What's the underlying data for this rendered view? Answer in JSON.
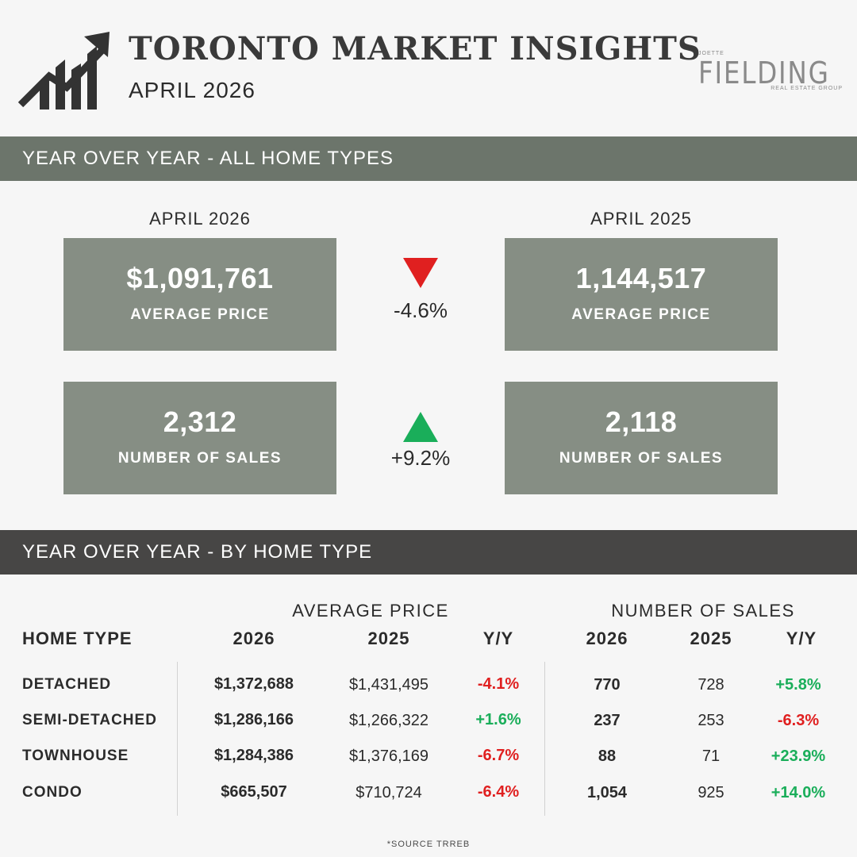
{
  "header": {
    "title": "TORONTO MARKET INSIGHTS",
    "subtitle": "APRIL 2026",
    "brand_small": "JOETTE",
    "brand_name": "FIELDING",
    "brand_tag": "REAL ESTATE GROUP",
    "icon": "growth-chart-icon"
  },
  "section_all": {
    "title": "YEAR OVER YEAR - ALL HOME TYPES",
    "current_label": "APRIL 2026",
    "previous_label": "APRIL 2025",
    "price": {
      "current_value": "$1,091,761",
      "current_label": "AVERAGE PRICE",
      "change": "-4.6%",
      "direction": "down",
      "previous_value": "1,144,517",
      "previous_label": "AVERAGE PRICE"
    },
    "sales": {
      "current_value": "2,312",
      "current_label": "NUMBER OF SALES",
      "change": "+9.2%",
      "direction": "up",
      "previous_value": "2,118",
      "previous_label": "NUMBER OF SALES"
    }
  },
  "section_type": {
    "title": "YEAR OVER YEAR - BY HOME TYPE",
    "group_price": "AVERAGE PRICE",
    "group_sales": "NUMBER OF SALES",
    "headers": {
      "home_type": "HOME TYPE",
      "price_2026": "2026",
      "price_2025": "2025",
      "price_yy": "Y/Y",
      "sales_2026": "2026",
      "sales_2025": "2025",
      "sales_yy": "Y/Y"
    },
    "rows": [
      {
        "type": "DETACHED",
        "price_2026": "$1,372,688",
        "price_2025": "$1,431,495",
        "price_yy": "-4.1%",
        "sales_2026": "770",
        "sales_2025": "728",
        "sales_yy": "+5.8%"
      },
      {
        "type": "SEMI-DETACHED",
        "price_2026": "$1,286,166",
        "price_2025": "$1,266,322",
        "price_yy": "+1.6%",
        "sales_2026": "237",
        "sales_2025": "253",
        "sales_yy": "-6.3%"
      },
      {
        "type": "TOWNHOUSE",
        "price_2026": "$1,284,386",
        "price_2025": "$1,376,169",
        "price_yy": "-6.7%",
        "sales_2026": "88",
        "sales_2025": "71",
        "sales_yy": "+23.9%"
      },
      {
        "type": "CONDO",
        "price_2026": "$665,507",
        "price_2025": "$710,724",
        "price_yy": "-6.4%",
        "sales_2026": "1,054",
        "sales_2025": "925",
        "sales_yy": "+14.0%"
      }
    ]
  },
  "footer": {
    "source": "*SOURCE TRREB"
  },
  "colors": {
    "negative": "#e02020",
    "positive": "#1aae5a",
    "card": "#868e84",
    "bar_primary": "#6c756b",
    "bar_secondary": "#474645"
  }
}
